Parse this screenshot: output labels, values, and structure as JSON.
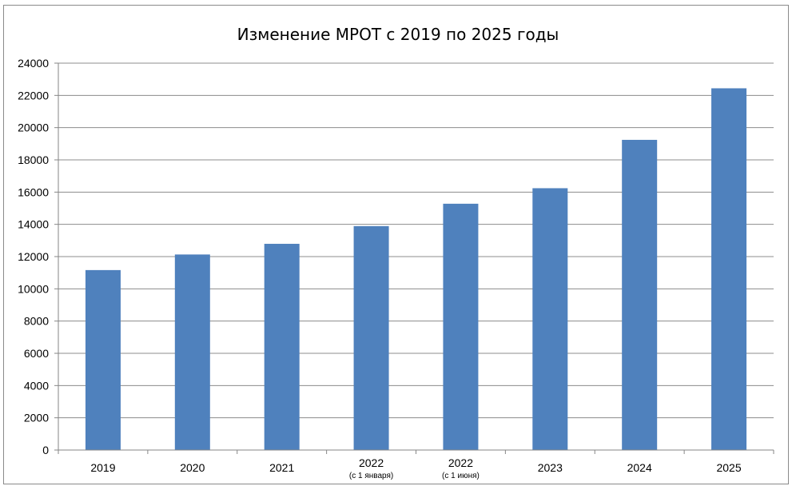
{
  "chart_data": {
    "type": "bar",
    "title": "Изменение МРОТ с 2019 по 2025 годы",
    "xlabel": "",
    "ylabel": "",
    "categories": [
      {
        "label": "2019",
        "sublabel": ""
      },
      {
        "label": "2020",
        "sublabel": ""
      },
      {
        "label": "2021",
        "sublabel": ""
      },
      {
        "label": "2022",
        "sublabel": "(с 1 января)"
      },
      {
        "label": "2022",
        "sublabel": "(с 1 июня)"
      },
      {
        "label": "2023",
        "sublabel": ""
      },
      {
        "label": "2024",
        "sublabel": ""
      },
      {
        "label": "2025",
        "sublabel": ""
      }
    ],
    "series": [
      {
        "values": [
          11163,
          12130,
          12792,
          13890,
          15279,
          16242,
          19242,
          22440
        ]
      }
    ],
    "ylim": [
      0,
      24000
    ],
    "yticks": [
      "0",
      "2000",
      "4000",
      "6000",
      "8000",
      "10000",
      "12000",
      "14000",
      "16000",
      "18000",
      "20000",
      "22000",
      "24000"
    ],
    "grid": true,
    "legend": "none",
    "colors": {
      "bar": "#4f81bd",
      "grid": "#8c8c8c",
      "axis": "#868686"
    }
  }
}
